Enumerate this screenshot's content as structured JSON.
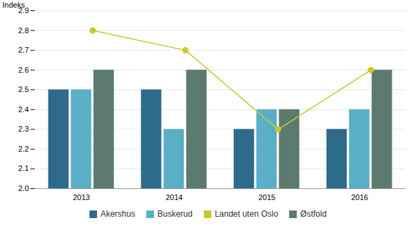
{
  "chart_data": {
    "type": "bar",
    "categories": [
      "2013",
      "2014",
      "2015",
      "2016"
    ],
    "series": [
      {
        "name": "Akershus",
        "type": "bar",
        "color": "#2e6b8a",
        "values": [
          2.5,
          2.5,
          2.3,
          2.3
        ]
      },
      {
        "name": "Buskerud",
        "type": "bar",
        "color": "#5aafc7",
        "values": [
          2.5,
          2.3,
          2.4,
          2.4
        ]
      },
      {
        "name": "Landet uten Oslo",
        "type": "line",
        "color": "#c8c830",
        "marker": "circle",
        "values": [
          2.8,
          2.7,
          2.3,
          2.6
        ]
      },
      {
        "name": "Østfold",
        "type": "bar",
        "color": "#5d7a6e",
        "values": [
          2.6,
          2.6,
          2.4,
          2.6
        ]
      }
    ],
    "ylabel": "Indeks",
    "ylim": [
      2.0,
      2.9
    ],
    "yticks": [
      {
        "value": 2.0,
        "label": "2.0"
      },
      2.1,
      2.2,
      2.3,
      2.4,
      2.5,
      2.6,
      2.7,
      2.8,
      2.9
    ],
    "grid": true,
    "legend": "bottom"
  }
}
